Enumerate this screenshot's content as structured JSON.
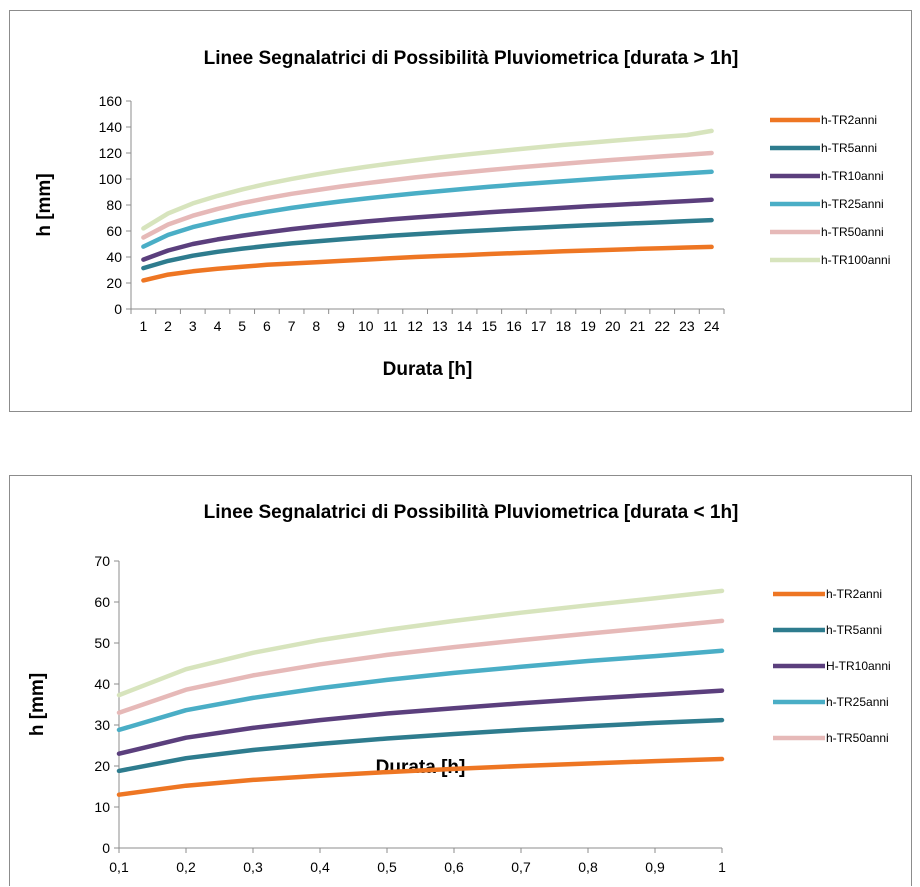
{
  "charts": [
    {
      "id": "chart1",
      "type": "line",
      "title": "Linee Segnalatrici di Possibilità Pluviometrica [durata > 1h]",
      "xlabel": "Durata [h]",
      "ylabel": "h [mm]",
      "x_ticks": [
        "1",
        "2",
        "3",
        "4",
        "5",
        "6",
        "7",
        "8",
        "9",
        "10",
        "11",
        "12",
        "13",
        "14",
        "15",
        "16",
        "17",
        "18",
        "19",
        "20",
        "21",
        "22",
        "23",
        "24"
      ],
      "y_ticks": [
        "0",
        "20",
        "40",
        "60",
        "80",
        "100",
        "120",
        "140",
        "160"
      ],
      "ylim": [
        0,
        160
      ],
      "legend_position": "right",
      "series": [
        {
          "name": "h-TR2anni",
          "color": "#ee7623",
          "values": [
            22,
            26.5,
            29,
            31,
            32.5,
            34,
            35,
            36,
            37,
            38,
            39,
            40,
            40.8,
            41.5,
            42.3,
            43,
            43.7,
            44.4,
            45,
            45.6,
            46.2,
            46.8,
            47.3,
            47.8
          ]
        },
        {
          "name": "h-TR5anni",
          "color": "#2e7c8e",
          "values": [
            31.5,
            37,
            41,
            44,
            46.5,
            48.5,
            50.5,
            52,
            53.5,
            55,
            56.3,
            57.5,
            58.6,
            59.7,
            60.7,
            61.7,
            62.6,
            63.5,
            64.4,
            65.2,
            66,
            66.8,
            67.6,
            68.4
          ]
        },
        {
          "name": "h-TR10anni",
          "color": "#5b3f7d",
          "values": [
            38,
            45,
            50,
            53.5,
            56.5,
            59,
            61.5,
            63.5,
            65.5,
            67.3,
            68.9,
            70.4,
            71.8,
            73.1,
            74.4,
            75.6,
            76.8,
            77.9,
            79,
            80,
            81,
            82,
            83,
            84
          ]
        },
        {
          "name": "h-TR25anni",
          "color": "#4aaec6",
          "values": [
            48,
            57,
            63,
            67.5,
            71.5,
            74.8,
            77.8,
            80.4,
            82.8,
            85,
            87,
            88.9,
            90.7,
            92.4,
            94,
            95.5,
            96.9,
            98.3,
            99.6,
            100.9,
            102.1,
            103.3,
            104.4,
            105.5
          ]
        },
        {
          "name": "h-TR50anni",
          "color": "#e6b9b8",
          "values": [
            55,
            65,
            71.8,
            77,
            81.5,
            85.2,
            88.6,
            91.5,
            94.2,
            96.7,
            99,
            101.2,
            103.2,
            105.1,
            106.9,
            108.6,
            110.2,
            111.8,
            113.3,
            114.7,
            116.1,
            117.4,
            118.7,
            120
          ]
        },
        {
          "name": "h-TR100anni",
          "color": "#d7e4bd",
          "values": [
            62,
            73.5,
            81.2,
            87,
            92,
            96.3,
            100.1,
            103.5,
            106.5,
            109.3,
            111.9,
            114.3,
            116.6,
            118.7,
            120.7,
            122.6,
            124.4,
            126.2,
            127.8,
            129.4,
            130.9,
            132.4,
            133.8,
            137
          ]
        }
      ]
    },
    {
      "id": "chart2",
      "type": "line",
      "title": "Linee Segnalatrici di Possibilità Pluviometrica [durata < 1h]",
      "xlabel": "Durata  [h]",
      "ylabel": "h [mm]",
      "x_ticks": [
        "0,1",
        "0,2",
        "0,3",
        "0,4",
        "0,5",
        "0,6",
        "0,7",
        "0,8",
        "0,9",
        "1"
      ],
      "y_ticks": [
        "0",
        "10",
        "20",
        "30",
        "40",
        "50",
        "60",
        "70"
      ],
      "ylim": [
        0,
        70
      ],
      "legend_position": "right",
      "series": [
        {
          "name": "h-TR2anni",
          "color": "#ee7623",
          "values": [
            13,
            15.2,
            16.6,
            17.6,
            18.5,
            19.3,
            20,
            20.6,
            21.2,
            21.7
          ]
        },
        {
          "name": "h-TR5anni",
          "color": "#2e7c8e",
          "values": [
            18.8,
            21.9,
            23.9,
            25.4,
            26.7,
            27.8,
            28.8,
            29.7,
            30.5,
            31.2
          ]
        },
        {
          "name": "H-TR10anni",
          "color": "#5b3f7d",
          "values": [
            23,
            26.9,
            29.3,
            31.2,
            32.8,
            34.1,
            35.3,
            36.4,
            37.4,
            38.4
          ]
        },
        {
          "name": "h-TR25anni",
          "color": "#4aaec6",
          "values": [
            28.8,
            33.6,
            36.6,
            39,
            41,
            42.7,
            44.2,
            45.6,
            46.8,
            48.1
          ]
        },
        {
          "name": "h-TR50anni",
          "color": "#e6b9b8",
          "values": [
            33,
            38.6,
            42.1,
            44.8,
            47.1,
            49,
            50.7,
            52.3,
            53.8,
            55.4
          ]
        },
        {
          "name": "",
          "color": "#d7e4bd",
          "values": [
            37.3,
            43.6,
            47.6,
            50.7,
            53.2,
            55.4,
            57.4,
            59.2,
            60.9,
            62.7
          ]
        }
      ]
    }
  ]
}
